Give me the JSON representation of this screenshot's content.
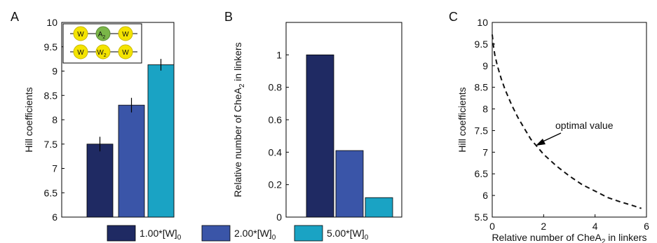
{
  "panel_labels": [
    "A",
    "B",
    "C"
  ],
  "legend": [
    {
      "label": "1.00*[W]",
      "sub": "0",
      "color": "#1f2a63"
    },
    {
      "label": "2.00*[W]",
      "sub": "0",
      "color": "#3a55a8"
    },
    {
      "label": "5.00*[W]",
      "sub": "0",
      "color": "#1aa3c4"
    }
  ],
  "inset": {
    "row1": [
      "W",
      "A",
      "W"
    ],
    "row1_sub": "2",
    "row2": [
      "W",
      "W",
      "W"
    ],
    "row2_sub": "2"
  },
  "chart_data": [
    {
      "panel": "A",
      "type": "bar",
      "ylabel": "Hill coefficients",
      "xlabel": "",
      "ylim": [
        6,
        10
      ],
      "yticks": [
        "6",
        "6.5",
        "7",
        "7.5",
        "8",
        "8.5",
        "9",
        "9.5",
        "10"
      ],
      "categories": [
        "1.00*[W]0",
        "2.00*[W]0",
        "5.00*[W]0"
      ],
      "values": [
        7.5,
        8.3,
        9.13
      ],
      "errors": [
        0.15,
        0.15,
        0.12
      ]
    },
    {
      "panel": "B",
      "type": "bar",
      "ylabel": "Relative number of CheA",
      "ylabel_sub": "2",
      "ylabel_tail": " in linkers",
      "xlabel": "",
      "ylim": [
        0,
        1.2
      ],
      "yticks": [
        "0",
        "0.2",
        "0.4",
        "0.6",
        "0.8",
        "1"
      ],
      "categories": [
        "1.00*[W]0",
        "2.00*[W]0",
        "5.00*[W]0"
      ],
      "values": [
        1.0,
        0.41,
        0.12
      ]
    },
    {
      "panel": "C",
      "type": "line",
      "ylabel": "Hill coefficients",
      "xlabel": "Relative number of CheA",
      "xlabel_sub": "2",
      "xlabel_tail": " in linkers",
      "xlim": [
        0,
        6
      ],
      "ylim": [
        5.5,
        10
      ],
      "xticks": [
        "0",
        "2",
        "4",
        "6"
      ],
      "yticks": [
        "5.5",
        "6",
        "6.5",
        "7",
        "7.5",
        "8",
        "8.5",
        "9",
        "9.5",
        "10"
      ],
      "x": [
        0.0,
        0.05,
        0.1,
        0.2,
        0.35,
        0.5,
        0.75,
        1.0,
        1.25,
        1.5,
        2.0,
        2.5,
        3.0,
        3.5,
        4.0,
        4.5,
        5.0,
        5.5,
        5.8
      ],
      "y": [
        9.72,
        9.45,
        9.25,
        9.0,
        8.7,
        8.45,
        8.1,
        7.8,
        7.55,
        7.3,
        6.95,
        6.68,
        6.45,
        6.25,
        6.1,
        5.95,
        5.85,
        5.76,
        5.7
      ],
      "annotation": {
        "text": "optimal value",
        "x": 1.6,
        "y": 7.2
      }
    }
  ]
}
